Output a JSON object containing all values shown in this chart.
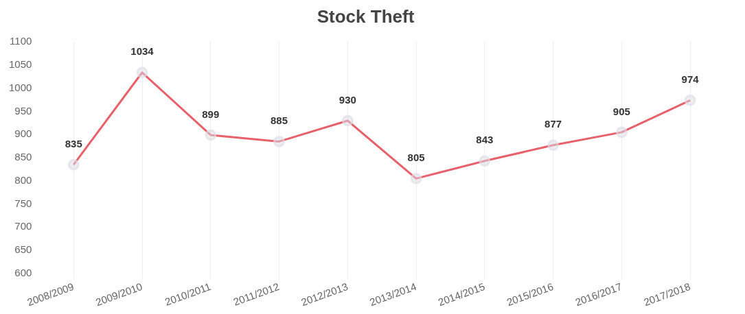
{
  "chart_data": {
    "type": "line",
    "title": "Stock Theft",
    "categories": [
      "2008/2009",
      "2009/2010",
      "2010/2011",
      "2011/2012",
      "2012/2013",
      "2013/2014",
      "2014/2015",
      "2015/2016",
      "2016/2017",
      "2017/2018"
    ],
    "series": [
      {
        "color": "#e8606a",
        "values": [
          835,
          1034,
          899,
          885,
          930,
          805,
          843,
          877,
          905,
          974
        ]
      }
    ],
    "ylim": [
      600,
      1100
    ],
    "yticks": [
      600,
      650,
      700,
      750,
      800,
      850,
      900,
      950,
      1000,
      1050,
      1100
    ],
    "grid": "x",
    "marker": "circle",
    "data_labels": true,
    "legend": false
  }
}
